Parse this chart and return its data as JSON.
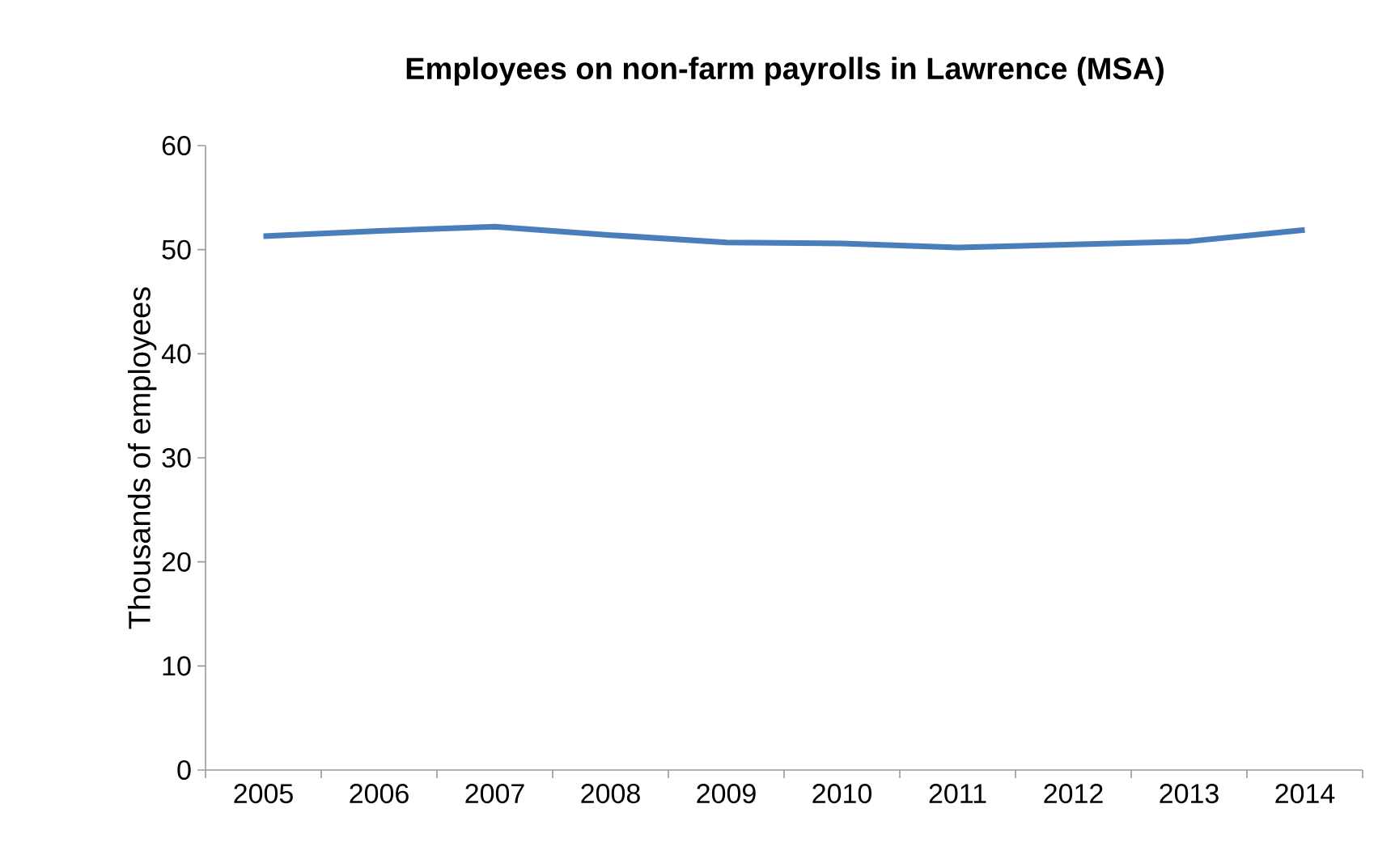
{
  "chart_data": {
    "type": "line",
    "title": "Employees on non-farm payrolls in Lawrence (MSA)",
    "ylabel": "Thousands of employees",
    "categories": [
      "2005",
      "2006",
      "2007",
      "2008",
      "2009",
      "2010",
      "2011",
      "2012",
      "2013",
      "2014"
    ],
    "series": [
      {
        "color": "#4a7ebb",
        "values": [
          51.3,
          51.8,
          52.2,
          51.4,
          50.7,
          50.6,
          50.2,
          50.5,
          50.8,
          51.9
        ]
      }
    ],
    "ylim": [
      0,
      60
    ],
    "yticks": [
      0,
      10,
      20,
      30,
      40,
      50,
      60
    ],
    "grid": false,
    "marker": "none",
    "line_style": "solid"
  }
}
